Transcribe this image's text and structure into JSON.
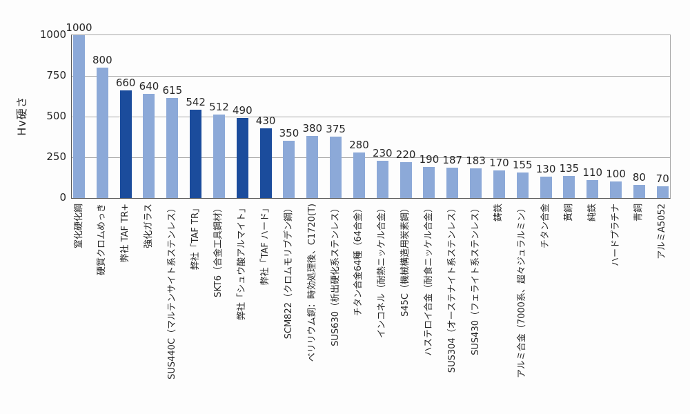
{
  "chart_data": {
    "type": "bar",
    "title": "",
    "xlabel": "",
    "ylabel": "Hv硬さ",
    "ylim": [
      0,
      1000
    ],
    "yticks": [
      0,
      250,
      500,
      750,
      1000
    ],
    "grid": true,
    "legend": false,
    "categories": [
      "窒化硬化鋼",
      "硬質クロムめっき",
      "弊社 TAF TR+",
      "強化ガラス",
      "SUS440C（マルテンサイト系ステンレス）",
      "弊社「TAF TR」",
      "SKT6（合金工具鋼材）",
      "弊社「シュウ酸アルマイト」",
      "弊社「TAF ハード」",
      "SCM822（クロムモリブデン鋼）",
      "ベリリウム銅：時効処理後、C1720(T)",
      "SUS630（析出硬化系ステンレス）",
      "チタン合金64種（64合金）",
      "インコネル（耐熱ニッケル合金）",
      "S45C（機械構造用炭素鋼）",
      "ハステロイ合金（耐食ニッケル合金）",
      "SUS304（オーステナイト系ステンレス）",
      "SUS430（フェライト系ステンレス）",
      "鋳鉄",
      "アルミ合金（7000系、超々ジュラルミン）",
      "チタン合金",
      "黄銅",
      "純鉄",
      "ハードプラチナ",
      "青銅",
      "アルミA5052"
    ],
    "values": [
      1000,
      800,
      660,
      640,
      615,
      542,
      512,
      490,
      430,
      350,
      380,
      375,
      280,
      230,
      220,
      190,
      187,
      183,
      170,
      155,
      130,
      135,
      110,
      100,
      80,
      70
    ],
    "highlighted_indices": [
      2,
      5,
      7,
      8
    ],
    "colors": {
      "bar_default": "#8CA9D8",
      "bar_highlight": "#1B4C9C",
      "gridline": "#A6A6A6",
      "axis": "#595959",
      "text": "#262626",
      "background": "#FDFDFD"
    }
  }
}
